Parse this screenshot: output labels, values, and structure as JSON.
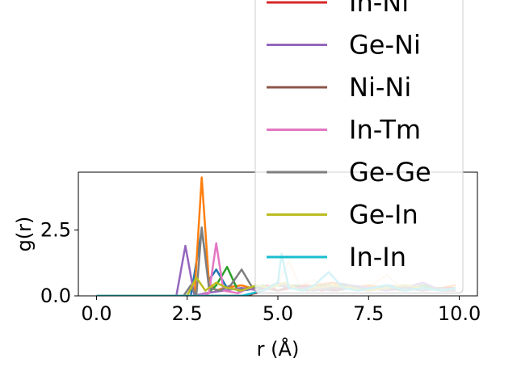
{
  "chart_data": {
    "type": "line",
    "xlabel": "r (Å)",
    "ylabel": "g(r)",
    "xlim": [
      -0.5,
      10.5
    ],
    "ylim": [
      0.0,
      4.7
    ],
    "xticks": [
      0.0,
      2.5,
      5.0,
      7.5,
      10.0
    ],
    "xtick_labels": [
      "0.0",
      "2.5",
      "5.0",
      "7.5",
      "10.0"
    ],
    "yticks": [
      0.0,
      2.5
    ],
    "ytick_labels": [
      "0.0",
      "2.5"
    ],
    "legend_position": "upper-right",
    "series": [
      {
        "name": "",
        "color": "#1f77b4",
        "x": [
          0,
          2.0,
          2.6,
          2.9,
          3.1,
          3.3,
          3.6,
          4.0,
          4.5,
          5.0,
          5.5,
          6.0,
          6.5,
          7.0,
          7.5,
          8.0,
          8.5,
          9.0,
          9.5,
          9.9
        ],
        "y": [
          0,
          0,
          0,
          2.5,
          0.6,
          1.0,
          0.3,
          0.2,
          0.3,
          0.4,
          0.3,
          0.3,
          0.5,
          0.4,
          0.3,
          0.4,
          0.3,
          0.3,
          0.2,
          0.3
        ]
      },
      {
        "name": "",
        "color": "#ff7f0e",
        "x": [
          0,
          2.0,
          2.7,
          2.9,
          3.1,
          3.3,
          3.5,
          4.0,
          4.5,
          5.0,
          5.5,
          6.0,
          6.5,
          7.0,
          7.5,
          8.0,
          8.5,
          9.0,
          9.5,
          9.9
        ],
        "y": [
          0,
          0,
          0,
          4.5,
          0.5,
          0.2,
          0.3,
          0.4,
          0.2,
          0.5,
          0.3,
          0.4,
          0.5,
          0.3,
          0.4,
          0.3,
          0.4,
          0.3,
          0.3,
          0.4
        ]
      },
      {
        "name": "",
        "color": "#2ca02c",
        "x": [
          0,
          2.0,
          3.0,
          3.3,
          3.6,
          3.9,
          4.2,
          4.6,
          5.0,
          5.5,
          6.0,
          6.5,
          7.0,
          7.5,
          8.0,
          8.5,
          9.0,
          9.5,
          9.9
        ],
        "y": [
          0,
          0,
          0,
          0.4,
          1.1,
          0.2,
          0.3,
          0.4,
          0.2,
          0.4,
          0.3,
          0.3,
          0.4,
          0.3,
          0.3,
          0.2,
          0.4,
          0.2,
          0.3
        ]
      },
      {
        "name": "In-Ni",
        "color": "#d62728",
        "x": [
          0,
          3.0,
          4.0,
          4.4,
          4.7,
          5.0,
          5.4,
          5.8,
          6.2,
          6.6,
          7.0,
          7.5,
          8.0,
          8.5,
          9.0,
          9.5,
          9.9
        ],
        "y": [
          0,
          0,
          0,
          0.1,
          0.4,
          0.2,
          0.3,
          0.4,
          0.2,
          0.3,
          0.4,
          0.2,
          0.3,
          0.3,
          0.2,
          0.3,
          0.3
        ]
      },
      {
        "name": "Ge-Ni",
        "color": "#9467bd",
        "x": [
          0,
          2.2,
          2.45,
          2.7,
          3.0,
          3.5,
          4.0,
          4.5,
          5.0,
          5.5,
          6.0,
          6.5,
          7.0,
          7.5,
          8.0,
          8.5,
          9.0,
          9.5,
          9.9
        ],
        "y": [
          0,
          0,
          1.9,
          0,
          0.1,
          0.2,
          0.3,
          0.2,
          0.4,
          0.3,
          0.3,
          0.2,
          0.4,
          0.3,
          0.2,
          0.3,
          0.5,
          0.2,
          0.3
        ]
      },
      {
        "name": "Ni-Ni",
        "color": "#8c564b",
        "x": [
          0,
          3.5,
          4.2,
          4.6,
          5.0,
          5.4,
          5.8,
          6.2,
          6.6,
          7.0,
          7.5,
          8.0,
          8.5,
          9.0,
          9.5,
          9.9
        ],
        "y": [
          0,
          0,
          0,
          0.3,
          0.2,
          0.4,
          0.2,
          0.3,
          0.2,
          0.3,
          0.2,
          0.3,
          0.2,
          0.3,
          0.2,
          0.2
        ]
      },
      {
        "name": "In-Tm",
        "color": "#e377c2",
        "x": [
          0,
          2.8,
          3.1,
          3.3,
          3.5,
          3.9,
          4.2,
          4.6,
          5.0,
          5.5,
          6.0,
          6.5,
          7.0,
          7.5,
          8.0,
          8.5,
          9.0,
          9.5,
          9.9
        ],
        "y": [
          0,
          0,
          0.1,
          2.0,
          0.2,
          0.1,
          0.3,
          0.2,
          0.5,
          0.3,
          0.2,
          0.4,
          0.3,
          0.2,
          0.3,
          0.3,
          0.2,
          0.3,
          0.2
        ]
      },
      {
        "name": "Ge-Ge",
        "color": "#7f7f7f",
        "x": [
          0,
          2.4,
          2.6,
          2.75,
          2.9,
          3.1,
          3.4,
          3.7,
          4.0,
          4.3,
          4.6,
          5.0,
          5.5,
          6.0,
          6.5,
          7.0,
          7.5,
          8.0,
          8.5,
          9.0,
          9.5,
          9.9
        ],
        "y": [
          0,
          0,
          0.4,
          0,
          2.6,
          0.3,
          0.2,
          0.4,
          1.0,
          0.3,
          0.2,
          0.4,
          0.3,
          0.2,
          0.3,
          0.4,
          0.2,
          0.3,
          0.3,
          0.2,
          0.3,
          0.2
        ]
      },
      {
        "name": "Ge-In",
        "color": "#bcbd22",
        "x": [
          0,
          2.5,
          2.75,
          3.0,
          3.3,
          3.6,
          4.0,
          4.4,
          4.8,
          5.2,
          5.6,
          6.0,
          6.5,
          7.0,
          7.5,
          8.0,
          8.5,
          9.0,
          9.5,
          9.9
        ],
        "y": [
          0,
          0,
          0.7,
          0.2,
          0.5,
          0.3,
          0.2,
          0.4,
          0.3,
          0.5,
          0.2,
          0.3,
          0.4,
          0.3,
          0.2,
          0.3,
          0.4,
          0.3,
          0.2,
          0.3
        ]
      },
      {
        "name": "In-In",
        "color": "#17becf",
        "x": [
          0,
          4.0,
          4.6,
          5.0,
          5.1,
          5.3,
          5.7,
          6.0,
          6.4,
          6.8,
          7.2,
          7.6,
          8.0,
          8.5,
          9.0,
          9.5,
          9.9
        ],
        "y": [
          0,
          0,
          0.2,
          0.5,
          1.6,
          0.3,
          0.2,
          0.4,
          0.9,
          0.3,
          0.2,
          0.3,
          0.4,
          0.2,
          0.3,
          0.2,
          0.3
        ]
      }
    ],
    "faded_overlay": {
      "color": "#f2c9a0",
      "x": [
        4.8,
        5.0,
        5.3,
        5.6,
        6.0,
        6.4,
        6.8,
        7.2,
        7.6,
        8.0,
        8.4,
        8.8,
        9.2,
        9.6
      ],
      "y": [
        0.3,
        0.5,
        1.3,
        0.4,
        0.6,
        0.3,
        0.5,
        0.2,
        0.4,
        0.8,
        0.3,
        0.4,
        0.3,
        0.2
      ]
    }
  }
}
